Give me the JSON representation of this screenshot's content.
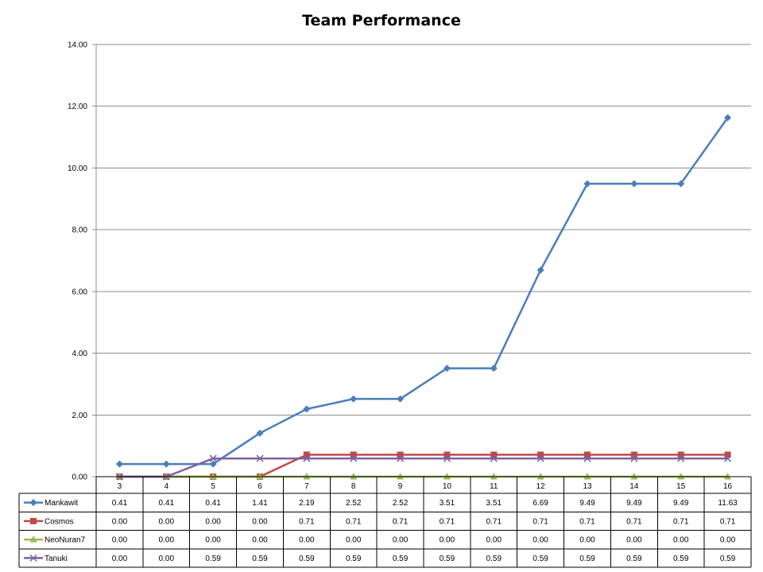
{
  "chart_data": {
    "type": "line",
    "title": "Team Performance",
    "categories": [
      "3",
      "4",
      "5",
      "6",
      "7",
      "8",
      "9",
      "10",
      "11",
      "12",
      "13",
      "14",
      "15",
      "16"
    ],
    "ylim": [
      0,
      14
    ],
    "yticks": [
      "0.00",
      "2.00",
      "4.00",
      "6.00",
      "8.00",
      "10.00",
      "12.00",
      "14.00"
    ],
    "grid": true,
    "legend": "data-table",
    "series": [
      {
        "name": "Mankawit",
        "color": "#4a7ebb",
        "marker": "diamond",
        "values": [
          0.41,
          0.41,
          0.41,
          1.41,
          2.19,
          2.52,
          2.52,
          3.51,
          3.51,
          6.69,
          9.49,
          9.49,
          9.49,
          11.63
        ],
        "labels": [
          "0.41",
          "0.41",
          "0.41",
          "1.41",
          "2.19",
          "2.52",
          "2.52",
          "3.51",
          "3.51",
          "6.69",
          "9.49",
          "9.49",
          "9.49",
          "11.63"
        ]
      },
      {
        "name": "Cosmos",
        "color": "#be4b48",
        "marker": "square",
        "values": [
          0,
          0,
          0,
          0,
          0.71,
          0.71,
          0.71,
          0.71,
          0.71,
          0.71,
          0.71,
          0.71,
          0.71,
          0.71
        ],
        "labels": [
          "0.00",
          "0.00",
          "0.00",
          "0.00",
          "0.71",
          "0.71",
          "0.71",
          "0.71",
          "0.71",
          "0.71",
          "0.71",
          "0.71",
          "0.71",
          "0.71"
        ]
      },
      {
        "name": "NeoNuran7",
        "color": "#98b954",
        "marker": "triangle",
        "values": [
          0,
          0,
          0,
          0,
          0,
          0,
          0,
          0,
          0,
          0,
          0,
          0,
          0,
          0
        ],
        "labels": [
          "0.00",
          "0.00",
          "0.00",
          "0.00",
          "0.00",
          "0.00",
          "0.00",
          "0.00",
          "0.00",
          "0.00",
          "0.00",
          "0.00",
          "0.00",
          "0.00"
        ]
      },
      {
        "name": "Tanuki",
        "color": "#7d60a0",
        "marker": "x",
        "values": [
          0,
          0,
          0.59,
          0.59,
          0.59,
          0.59,
          0.59,
          0.59,
          0.59,
          0.59,
          0.59,
          0.59,
          0.59,
          0.59
        ],
        "labels": [
          "0.00",
          "0.00",
          "0.59",
          "0.59",
          "0.59",
          "0.59",
          "0.59",
          "0.59",
          "0.59",
          "0.59",
          "0.59",
          "0.59",
          "0.59",
          "0.59"
        ]
      }
    ]
  }
}
